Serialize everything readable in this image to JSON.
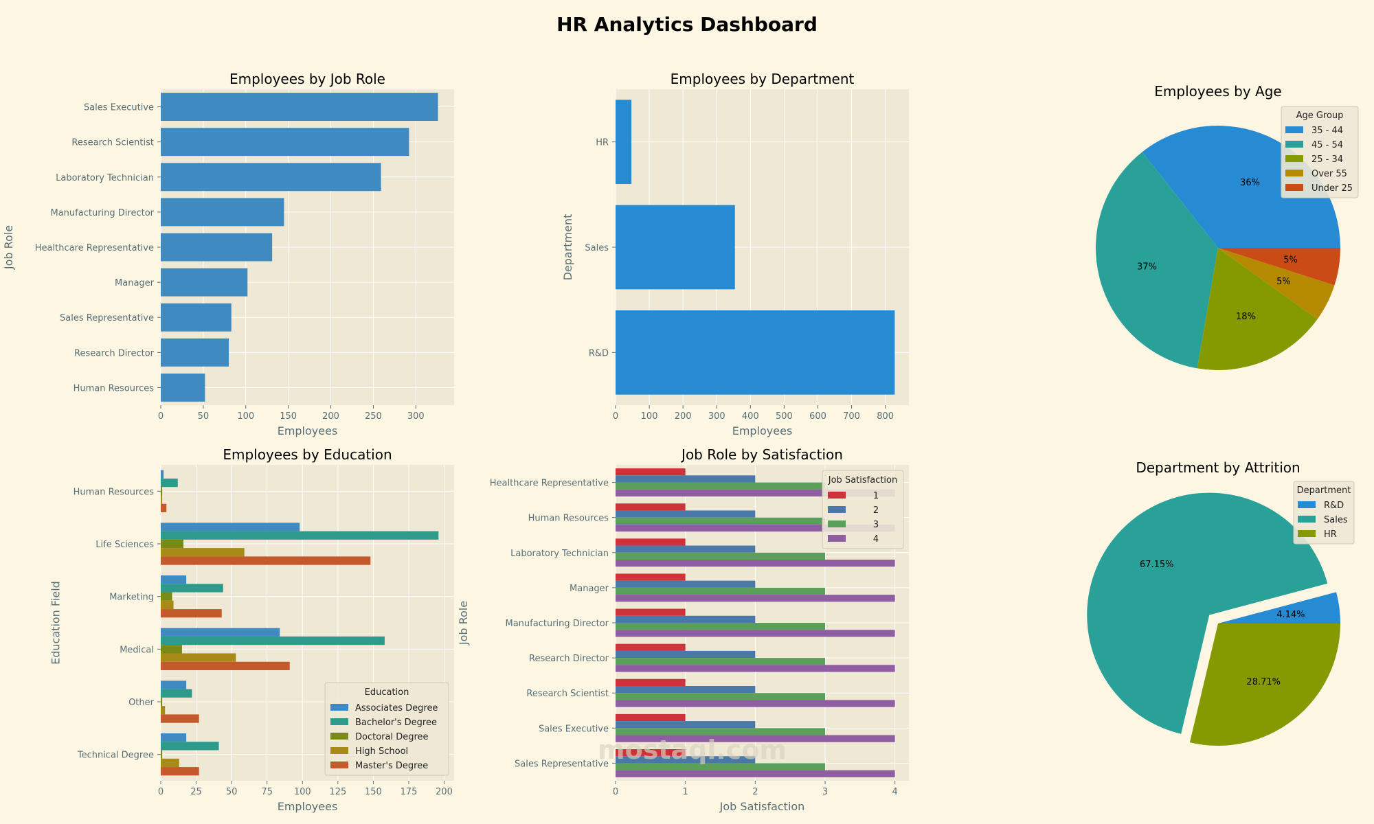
{
  "page": {
    "title": "HR Analytics Dashboard",
    "watermark": "mostaql.com"
  },
  "colors": {
    "background": "#fdf6e3",
    "plot_bg": "#eee8d5",
    "grid": "#ffffff",
    "text": "#586e75",
    "bar_blue": "#3f8ac0",
    "bar_blue_bright": "#268bd2"
  },
  "chart_data": [
    {
      "id": "job_role",
      "type": "bar",
      "orientation": "horizontal",
      "title": "Employees by Job Role",
      "xlabel": "Employees",
      "ylabel": "Job Role",
      "categories": [
        "Sales Executive",
        "Research Scientist",
        "Laboratory Technician",
        "Manufacturing Director",
        "Healthcare Representative",
        "Manager",
        "Sales Representative",
        "Research Director",
        "Human Resources"
      ],
      "values": [
        326,
        292,
        259,
        145,
        131,
        102,
        83,
        80,
        52
      ],
      "xlim": [
        0,
        345
      ],
      "xticks": [
        0,
        50,
        100,
        150,
        200,
        250,
        300
      ],
      "color": "#3f8ac0",
      "grid": true
    },
    {
      "id": "department",
      "type": "bar",
      "orientation": "horizontal",
      "title": "Employees by Department",
      "xlabel": "Employees",
      "ylabel": "Department",
      "categories": [
        "HR",
        "Sales",
        "R&D"
      ],
      "values": [
        47,
        354,
        828
      ],
      "xlim": [
        0,
        870
      ],
      "xticks": [
        0,
        100,
        200,
        300,
        400,
        500,
        600,
        700,
        800
      ],
      "color": "#268bd2",
      "grid": true
    },
    {
      "id": "age",
      "type": "pie",
      "title": "Employees by Age",
      "legend_title": "Age Group",
      "legend_position": "top-right",
      "labels": [
        "35 - 44",
        "45 - 54",
        "25 - 34",
        "Over 55",
        "Under 25"
      ],
      "values": [
        36,
        37,
        18,
        5,
        5
      ],
      "pct_labels": [
        "36%",
        "37%",
        "18%",
        "5%",
        "5%"
      ],
      "colors": [
        "#268bd2",
        "#2aa198",
        "#859900",
        "#b58900",
        "#cb4b16"
      ]
    },
    {
      "id": "education",
      "type": "bar",
      "orientation": "horizontal",
      "grouped": true,
      "title": "Employees by Education",
      "xlabel": "Employees",
      "ylabel": "Education Field",
      "legend_title": "Education",
      "legend_position": "lower-right",
      "categories": [
        "Human Resources",
        "Life Sciences",
        "Marketing",
        "Medical",
        "Other",
        "Technical Degree"
      ],
      "xlim": [
        0,
        207
      ],
      "xticks": [
        0,
        25,
        50,
        75,
        100,
        125,
        150,
        175,
        200
      ],
      "series": [
        {
          "name": "Associates Degree",
          "color": "#3f8ac0",
          "values": [
            2,
            98,
            18,
            84,
            18,
            18
          ]
        },
        {
          "name": "Bachelor's Degree",
          "color": "#2e9a8c",
          "values": [
            12,
            196,
            44,
            158,
            22,
            41
          ]
        },
        {
          "name": "Doctoral Degree",
          "color": "#7a8a16",
          "values": [
            1,
            16,
            8,
            15,
            1,
            1
          ]
        },
        {
          "name": "High School",
          "color": "#a88a18",
          "values": [
            1,
            59,
            9,
            53,
            3,
            13
          ]
        },
        {
          "name": "Master's Degree",
          "color": "#c45a2c",
          "values": [
            4,
            148,
            43,
            91,
            27,
            27
          ]
        }
      ],
      "grid": true
    },
    {
      "id": "satisfaction",
      "type": "bar",
      "orientation": "horizontal",
      "grouped": true,
      "title": "Job Role by Satisfaction",
      "xlabel": "Job Satisfaction",
      "ylabel": "Job Role",
      "legend_title": "Job Satisfaction",
      "legend_position": "top-right",
      "categories": [
        "Healthcare Representative",
        "Human Resources",
        "Laboratory Technician",
        "Manager",
        "Manufacturing Director",
        "Research Director",
        "Research Scientist",
        "Sales Executive",
        "Sales Representative"
      ],
      "xlim": [
        0,
        4.2
      ],
      "xticks": [
        0,
        1,
        2,
        3,
        4
      ],
      "series": [
        {
          "name": "1",
          "color": "#d0323a",
          "values": [
            1,
            1,
            1,
            1,
            1,
            1,
            1,
            1,
            1
          ]
        },
        {
          "name": "2",
          "color": "#4a78a8",
          "values": [
            2,
            2,
            2,
            2,
            2,
            2,
            2,
            2,
            2
          ]
        },
        {
          "name": "3",
          "color": "#5aa05a",
          "values": [
            3,
            3,
            3,
            3,
            3,
            3,
            3,
            3,
            3
          ]
        },
        {
          "name": "4",
          "color": "#8e5ea0",
          "values": [
            4,
            4,
            4,
            4,
            4,
            4,
            4,
            4,
            4
          ]
        }
      ],
      "grid": true
    },
    {
      "id": "attrition",
      "type": "pie",
      "title": "Department by Attrition",
      "legend_title": "Department",
      "legend_position": "top-right",
      "labels": [
        "R&D",
        "Sales",
        "HR"
      ],
      "values": [
        4.14,
        67.15,
        28.71
      ],
      "pct_labels": [
        "4.14%",
        "67.15%",
        "28.71%"
      ],
      "colors": [
        "#268bd2",
        "#2aa198",
        "#859900"
      ],
      "exploded": [
        false,
        true,
        false
      ]
    }
  ]
}
